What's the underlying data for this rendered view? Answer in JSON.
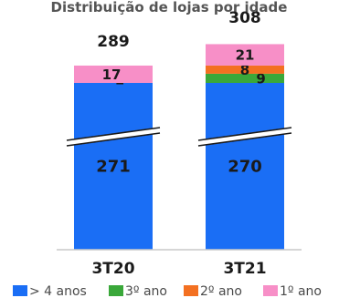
{
  "chart_data": {
    "type": "bar",
    "stacked": true,
    "title": "Distribuição de lojas por idade",
    "categories": [
      "3T20",
      "3T21"
    ],
    "totals": [
      "289",
      "308"
    ],
    "series": [
      {
        "name": "> 4 anos",
        "color": "#1a6ef5",
        "values": [
          271,
          270
        ]
      },
      {
        "name": "3º ano",
        "color": "#3aa83a",
        "values": [
          0,
          9
        ]
      },
      {
        "name": "2º ano",
        "color": "#f37021",
        "values": [
          1,
          8
        ]
      },
      {
        "name": "1º ano",
        "color": "#f78fc7",
        "values": [
          17,
          21
        ]
      }
    ],
    "axis_break": true,
    "legend_position": "bottom"
  }
}
